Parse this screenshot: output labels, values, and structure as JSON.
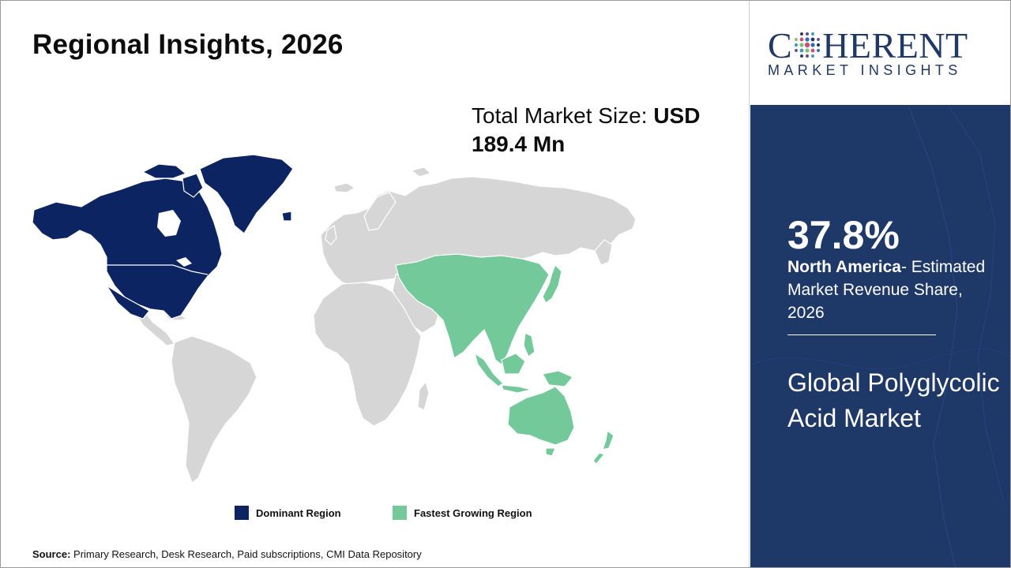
{
  "title": "Regional Insights, 2026",
  "market_size": {
    "label": "Total Market Size: ",
    "value": "USD 189.4 Mn"
  },
  "colors": {
    "dominant": "#0c2461",
    "fastest": "#74c99a",
    "other": "#d6d6d6",
    "panel": "#1e3867",
    "brand": "#1f3866"
  },
  "legend": {
    "dominant_label": "Dominant Region",
    "fastest_label": "Fastest Growing Region"
  },
  "source": {
    "label": "Source:",
    "text": "Primary Research, Desk Research, Paid subscriptions, CMI Data Repository"
  },
  "logo": {
    "word_left": "C",
    "word_right": "HERENT",
    "subtitle": "MARKET INSIGHTS",
    "icon": "dotted-globe-icon"
  },
  "panel": {
    "share_value": "37.8%",
    "region": "North America",
    "share_desc": "- Estimated Market Revenue Share, 2026",
    "market_name": "Global Polyglycolic Acid Market"
  }
}
